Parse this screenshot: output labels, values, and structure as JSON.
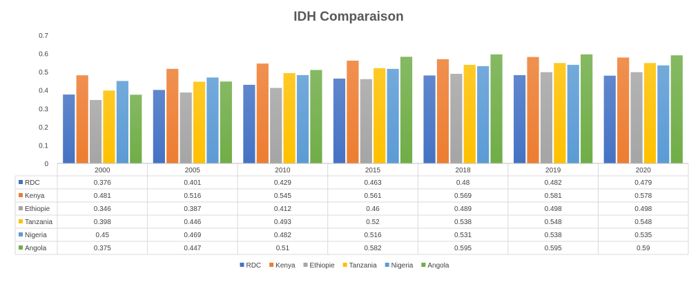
{
  "chart_data": {
    "type": "bar",
    "title": "IDH Comparaison",
    "categories": [
      "2000",
      "2005",
      "2010",
      "2015",
      "2018",
      "2019",
      "2020"
    ],
    "ylim": [
      0,
      0.7
    ],
    "yticks": [
      "0",
      "0.1",
      "0.2",
      "0.3",
      "0.4",
      "0.5",
      "0.6",
      "0.7"
    ],
    "grid": false,
    "legend_position": "bottom",
    "data_table": true,
    "series": [
      {
        "name": "RDC",
        "color": "#4472C4",
        "values": [
          0.376,
          0.401,
          0.429,
          0.463,
          0.48,
          0.482,
          0.479
        ],
        "labels": [
          "0.376",
          "0.401",
          "0.429",
          "0.463",
          "0.48",
          "0.482",
          "0.479"
        ]
      },
      {
        "name": "Kenya",
        "color": "#ED7D31",
        "values": [
          0.481,
          0.516,
          0.545,
          0.561,
          0.569,
          0.581,
          0.578
        ],
        "labels": [
          "0.481",
          "0.516",
          "0.545",
          "0.561",
          "0.569",
          "0.581",
          "0.578"
        ]
      },
      {
        "name": "Ethiopie",
        "color": "#A5A5A5",
        "values": [
          0.346,
          0.387,
          0.412,
          0.46,
          0.489,
          0.498,
          0.498
        ],
        "labels": [
          "0.346",
          "0.387",
          "0.412",
          "0.46",
          "0.489",
          "0.498",
          "0.498"
        ]
      },
      {
        "name": "Tanzania",
        "color": "#FFC000",
        "values": [
          0.398,
          0.446,
          0.493,
          0.52,
          0.538,
          0.548,
          0.548
        ],
        "labels": [
          "0.398",
          "0.446",
          "0.493",
          "0.52",
          "0.538",
          "0.548",
          "0.548"
        ]
      },
      {
        "name": "Nigeria",
        "color": "#5B9BD5",
        "values": [
          0.45,
          0.469,
          0.482,
          0.516,
          0.531,
          0.538,
          0.535
        ],
        "labels": [
          "0.45",
          "0.469",
          "0.482",
          "0.516",
          "0.531",
          "0.538",
          "0.535"
        ]
      },
      {
        "name": "Angola",
        "color": "#70AD47",
        "values": [
          0.375,
          0.447,
          0.51,
          0.582,
          0.595,
          0.595,
          0.59
        ],
        "labels": [
          "0.375",
          "0.447",
          "0.51",
          "0.582",
          "0.595",
          "0.595",
          "0.59"
        ]
      }
    ]
  }
}
